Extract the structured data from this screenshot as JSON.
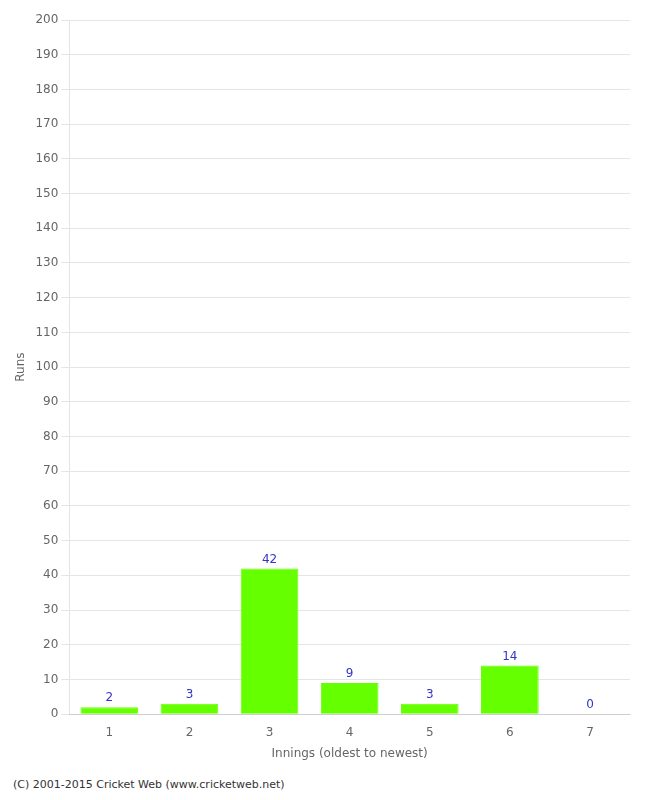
{
  "chart_data": {
    "type": "bar",
    "categories": [
      "1",
      "2",
      "3",
      "4",
      "5",
      "6",
      "7"
    ],
    "values": [
      2,
      3,
      42,
      9,
      3,
      14,
      0
    ],
    "color": "#66ff00",
    "xlabel": "Innings (oldest to newest)",
    "ylabel": "Runs",
    "ylim": [
      0,
      200
    ],
    "yticks": [
      0,
      10,
      20,
      30,
      40,
      50,
      60,
      70,
      80,
      90,
      100,
      110,
      120,
      130,
      140,
      150,
      160,
      170,
      180,
      190,
      200
    ],
    "grid": "y",
    "data_labels": true,
    "footnote": "(C) 2001-2015 Cricket Web (www.cricketweb.net)"
  }
}
